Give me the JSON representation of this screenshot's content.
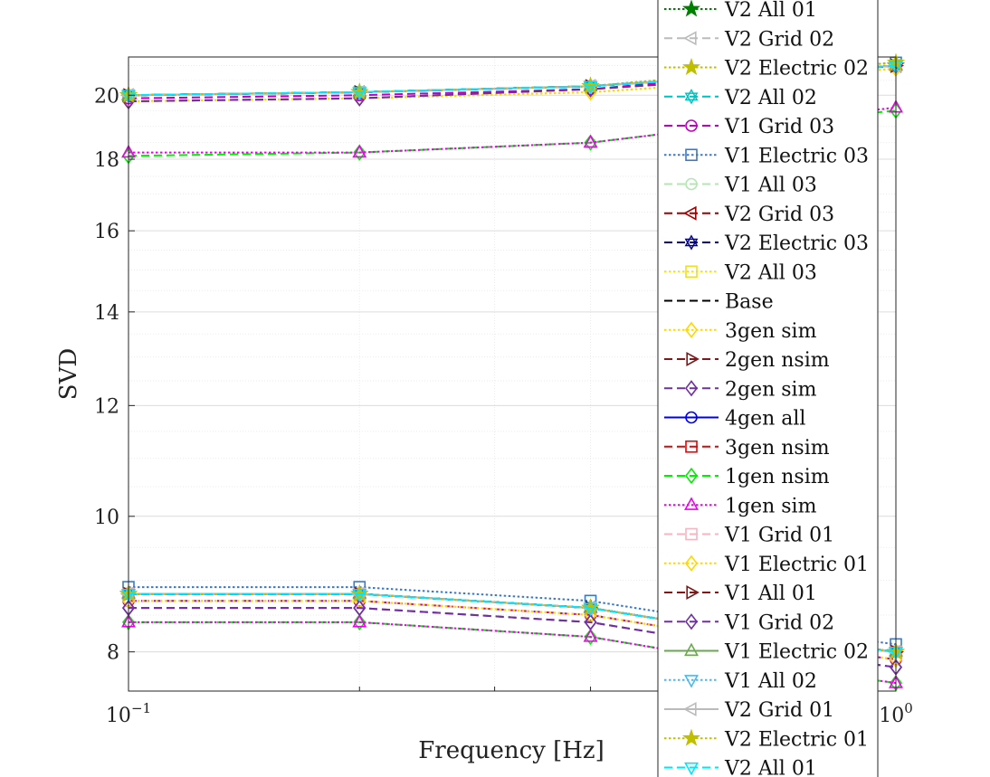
{
  "chart_data": {
    "type": "line",
    "title": "",
    "xlabel": "Frequency [Hz]",
    "ylabel": "SVD",
    "xscale": "log",
    "yscale": "log",
    "xlim": [
      0.1,
      1.0
    ],
    "ylim": [
      7.5,
      21.3
    ],
    "x_tick_labels": [
      {
        "value": 0.1,
        "base": "10",
        "exp": "−1"
      },
      {
        "value": 1.0,
        "base": "10",
        "exp": "0"
      }
    ],
    "y_ticks": [
      8,
      10,
      12,
      14,
      16,
      18,
      20
    ],
    "grid": true,
    "minor_grid": true,
    "legend_position": "right",
    "x": [
      0.1,
      0.2,
      0.4,
      0.6,
      1.0
    ],
    "series": [
      {
        "name": "V2 All 01",
        "color": "#008000",
        "dash": "dot",
        "marker": "star",
        "upper": [
          20.0,
          20.1,
          20.3,
          20.7,
          21.0
        ],
        "lower": [
          8.8,
          8.8,
          8.6,
          8.3,
          8.0
        ]
      },
      {
        "name": "V2 Grid 02",
        "color": "#bbbbbb",
        "dash": "dash",
        "marker": "triangle-left",
        "upper": [
          20.0,
          20.1,
          20.3,
          20.6,
          21.0
        ],
        "lower": [
          8.8,
          8.8,
          8.6,
          8.3,
          8.0
        ]
      },
      {
        "name": "V2 Electric 02",
        "color": "#bfbf00",
        "dash": "dot",
        "marker": "star",
        "upper": [
          20.0,
          20.1,
          20.3,
          20.7,
          21.1
        ],
        "lower": [
          8.8,
          8.8,
          8.6,
          8.3,
          8.0
        ]
      },
      {
        "name": "V2 All 02",
        "color": "#00bfbf",
        "dash": "dash",
        "marker": "hexagram",
        "upper": [
          20.0,
          20.1,
          20.3,
          20.6,
          21.0
        ],
        "lower": [
          8.8,
          8.8,
          8.6,
          8.3,
          8.0
        ]
      },
      {
        "name": "V1 Grid 03",
        "color": "#bf00bf",
        "dash": "dash",
        "marker": "circle",
        "upper": [
          19.9,
          20.0,
          20.2,
          20.6,
          21.0
        ],
        "lower": [
          8.7,
          8.7,
          8.5,
          8.2,
          7.9
        ]
      },
      {
        "name": "V1 Electric 03",
        "color": "#3a78c9",
        "dash": "dot",
        "marker": "square",
        "upper": [
          20.0,
          20.1,
          20.3,
          20.7,
          21.1
        ],
        "lower": [
          8.9,
          8.9,
          8.7,
          8.4,
          8.1
        ]
      },
      {
        "name": "V1 All 03",
        "color": "#b3e6b3",
        "dash": "dash",
        "marker": "circle",
        "upper": [
          20.0,
          20.1,
          20.3,
          20.6,
          21.0
        ],
        "lower": [
          8.8,
          8.8,
          8.6,
          8.3,
          8.0
        ]
      },
      {
        "name": "V2 Grid 03",
        "color": "#a00000",
        "dash": "dash",
        "marker": "triangle-left",
        "upper": [
          20.0,
          20.1,
          20.3,
          20.6,
          21.0
        ],
        "lower": [
          8.8,
          8.8,
          8.6,
          8.3,
          8.0
        ]
      },
      {
        "name": "V2 Electric 03",
        "color": "#000080",
        "dash": "dash",
        "marker": "hexagram",
        "upper": [
          20.0,
          20.1,
          20.3,
          20.6,
          21.0
        ],
        "lower": [
          8.8,
          8.8,
          8.6,
          8.3,
          8.0
        ]
      },
      {
        "name": "V2 All 03",
        "color": "#f0e020",
        "dash": "dot",
        "marker": "square",
        "upper": [
          20.0,
          20.1,
          20.3,
          20.6,
          21.0
        ],
        "lower": [
          8.8,
          8.8,
          8.6,
          8.3,
          8.0
        ]
      },
      {
        "name": "Base",
        "color": "#000000",
        "dash": "dash",
        "marker": "none",
        "upper": [
          20.0,
          20.1,
          20.3,
          20.6,
          21.0
        ],
        "lower": [
          8.8,
          8.8,
          8.6,
          8.3,
          8.0
        ]
      },
      {
        "name": "3gen sim",
        "color": "#ffd700",
        "dash": "dot",
        "marker": "diamond",
        "upper": [
          19.8,
          19.9,
          20.1,
          20.4,
          20.9
        ],
        "lower": [
          8.7,
          8.7,
          8.5,
          8.2,
          7.9
        ]
      },
      {
        "name": "2gen nsim",
        "color": "#7a1a1a",
        "dash": "dash",
        "marker": "triangle-right",
        "upper": [
          20.0,
          20.1,
          20.3,
          20.6,
          21.0
        ],
        "lower": [
          8.8,
          8.8,
          8.6,
          8.3,
          8.0
        ]
      },
      {
        "name": "2gen sim",
        "color": "#7030a0",
        "dash": "dash",
        "marker": "diamond",
        "upper": [
          19.8,
          19.9,
          20.2,
          20.5,
          21.0
        ],
        "lower": [
          8.6,
          8.6,
          8.4,
          8.1,
          7.8
        ]
      },
      {
        "name": "4gen all",
        "color": "#0000ee",
        "dash": "solid",
        "marker": "circle",
        "upper": [
          20.0,
          20.1,
          20.3,
          20.6,
          21.0
        ],
        "lower": [
          8.8,
          8.8,
          8.6,
          8.3,
          8.0
        ]
      },
      {
        "name": "3gen nsim",
        "color": "#ee0000",
        "dash": "dash",
        "marker": "square",
        "upper": [
          20.0,
          20.1,
          20.3,
          20.6,
          21.0
        ],
        "lower": [
          8.8,
          8.8,
          8.6,
          8.3,
          8.0
        ]
      },
      {
        "name": "1gen nsim",
        "color": "#00ee00",
        "dash": "dash",
        "marker": "diamond",
        "upper": [
          18.1,
          18.2,
          18.5,
          19.0,
          19.5
        ],
        "lower": [
          8.4,
          8.4,
          8.2,
          7.9,
          7.6
        ]
      },
      {
        "name": "1gen sim",
        "color": "#ee00ee",
        "dash": "dot",
        "marker": "triangle-up",
        "upper": [
          18.2,
          18.2,
          18.5,
          19.0,
          19.6
        ],
        "lower": [
          8.4,
          8.4,
          8.2,
          7.9,
          7.6
        ]
      },
      {
        "name": "V1 Grid 01",
        "color": "#f4b6c2",
        "dash": "dash",
        "marker": "square",
        "upper": [
          20.0,
          20.1,
          20.3,
          20.6,
          21.0
        ],
        "lower": [
          8.8,
          8.8,
          8.6,
          8.3,
          8.0
        ]
      },
      {
        "name": "V1 Electric 01",
        "color": "#ffd700",
        "dash": "dot",
        "marker": "diamond",
        "upper": [
          19.8,
          19.9,
          20.1,
          20.4,
          20.9
        ],
        "lower": [
          8.7,
          8.7,
          8.5,
          8.2,
          7.9
        ]
      },
      {
        "name": "V1 All 01",
        "color": "#7a1a1a",
        "dash": "dash",
        "marker": "triangle-right",
        "upper": [
          20.0,
          20.1,
          20.3,
          20.6,
          21.0
        ],
        "lower": [
          8.8,
          8.8,
          8.6,
          8.3,
          8.0
        ]
      },
      {
        "name": "V1 Grid 02",
        "color": "#7030a0",
        "dash": "dash",
        "marker": "diamond",
        "upper": [
          19.8,
          19.9,
          20.2,
          20.5,
          21.0
        ],
        "lower": [
          8.6,
          8.6,
          8.4,
          8.1,
          7.8
        ]
      },
      {
        "name": "V1 Electric 02",
        "color": "#6aa84f",
        "dash": "solid",
        "marker": "triangle-up",
        "upper": [
          20.0,
          20.1,
          20.3,
          20.6,
          21.0
        ],
        "lower": [
          8.8,
          8.8,
          8.6,
          8.3,
          8.0
        ]
      },
      {
        "name": "V1 All 02",
        "color": "#4db8e8",
        "dash": "dot",
        "marker": "triangle-down",
        "upper": [
          20.0,
          20.1,
          20.3,
          20.6,
          21.0
        ],
        "lower": [
          8.8,
          8.8,
          8.6,
          8.3,
          8.0
        ]
      },
      {
        "name": "V2 Grid 01",
        "color": "#bbbbbb",
        "dash": "solid",
        "marker": "triangle-left",
        "upper": [
          20.0,
          20.1,
          20.3,
          20.6,
          21.0
        ],
        "lower": [
          8.8,
          8.8,
          8.6,
          8.3,
          8.0
        ]
      },
      {
        "name": "V2 Electric 01",
        "color": "#bfbf00",
        "dash": "dot",
        "marker": "star",
        "upper": [
          20.0,
          20.1,
          20.3,
          20.7,
          21.1
        ],
        "lower": [
          8.8,
          8.8,
          8.6,
          8.3,
          8.0
        ]
      },
      {
        "name": "V2 All 01",
        "color": "#00e5ff",
        "dash": "dash",
        "marker": "triangle-down",
        "upper": [
          20.0,
          20.1,
          20.3,
          20.6,
          21.0
        ],
        "lower": [
          8.8,
          8.8,
          8.6,
          8.3,
          8.0
        ]
      }
    ]
  }
}
